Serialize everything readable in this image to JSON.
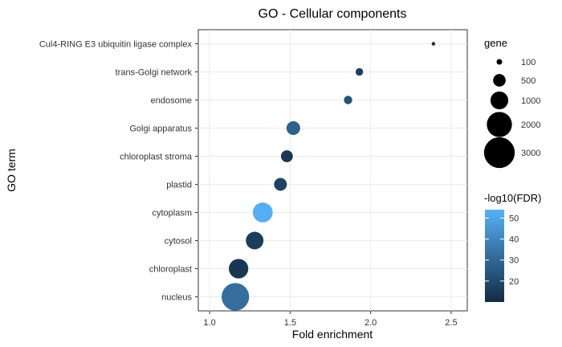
{
  "chart_data": {
    "type": "scatter",
    "title": "GO - Cellular components",
    "xlabel": "Fold enrichment",
    "ylabel": "GO term",
    "xlim": [
      0.93,
      2.6
    ],
    "x_ticks": [
      1.0,
      1.5,
      2.0,
      2.5
    ],
    "x_tick_labels": [
      "1.0",
      "1.5",
      "2.0",
      "2.5"
    ],
    "grid": true,
    "categories": [
      "Cul4-RING E3 ubiquitin ligase complex",
      "trans-Golgi network",
      "endosome",
      "Golgi apparatus",
      "chloroplast stroma",
      "plastid",
      "cytoplasm",
      "cytosol",
      "chloroplast",
      "nucleus"
    ],
    "points": [
      {
        "term": "Cul4-RING E3 ubiquitin ligase complex",
        "x": 2.39,
        "gene": 40,
        "fdr": 11
      },
      {
        "term": "trans-Golgi network",
        "x": 1.93,
        "gene": 180,
        "fdr": 17
      },
      {
        "term": "endosome",
        "x": 1.86,
        "gene": 220,
        "fdr": 23
      },
      {
        "term": "Golgi apparatus",
        "x": 1.52,
        "gene": 600,
        "fdr": 28
      },
      {
        "term": "chloroplast stroma",
        "x": 1.48,
        "gene": 450,
        "fdr": 14
      },
      {
        "term": "plastid",
        "x": 1.44,
        "gene": 520,
        "fdr": 18
      },
      {
        "term": "cytoplasm",
        "x": 1.33,
        "gene": 1250,
        "fdr": 53
      },
      {
        "term": "cytosol",
        "x": 1.28,
        "gene": 980,
        "fdr": 16
      },
      {
        "term": "chloroplast",
        "x": 1.18,
        "gene": 1200,
        "fdr": 14
      },
      {
        "term": "nucleus",
        "x": 1.16,
        "gene": 2400,
        "fdr": 32
      }
    ],
    "size_legend": {
      "title": "gene",
      "values": [
        100,
        500,
        1000,
        2000,
        3000
      ],
      "labels": [
        "100",
        "500",
        "1000",
        "2000",
        "3000"
      ]
    },
    "color_legend": {
      "title": "-log10(FDR)",
      "min": 10,
      "max": 54,
      "ticks": [
        20,
        30,
        40,
        50
      ],
      "tick_labels": [
        "20",
        "30",
        "40",
        "50"
      ],
      "low_color": "#132B43",
      "high_color": "#56B1F7"
    }
  }
}
